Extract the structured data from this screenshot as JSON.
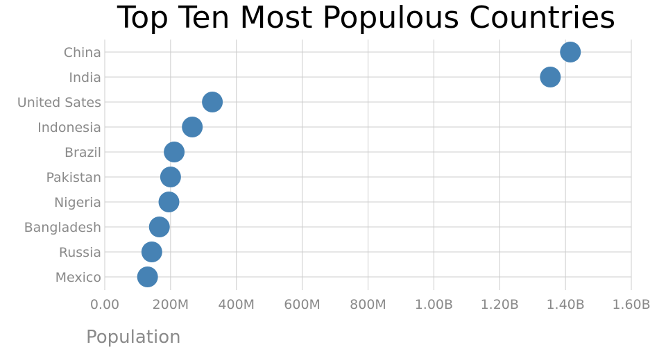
{
  "chart_data": {
    "type": "scatter",
    "title": "Top Ten Most Populous Countries",
    "xlabel": "Population",
    "ylabel": "",
    "xlim": [
      0,
      1600000000
    ],
    "x_ticks": [
      0,
      200000000,
      400000000,
      600000000,
      800000000,
      1000000000,
      1200000000,
      1400000000,
      1600000000
    ],
    "x_tick_labels": [
      "0.00",
      "200M",
      "400M",
      "600M",
      "800M",
      "1.00B",
      "1.20B",
      "1.40B",
      "1.60B"
    ],
    "categories": [
      "China",
      "India",
      "United Sates",
      "Indonesia",
      "Brazil",
      "Pakistan",
      "Nigeria",
      "Bangladesh",
      "Russia",
      "Mexico"
    ],
    "values": [
      1415000000,
      1354000000,
      327000000,
      266000000,
      211000000,
      200000000,
      195000000,
      166000000,
      143000000,
      130000000
    ],
    "grid": true,
    "marker_color": "#4682b4"
  }
}
